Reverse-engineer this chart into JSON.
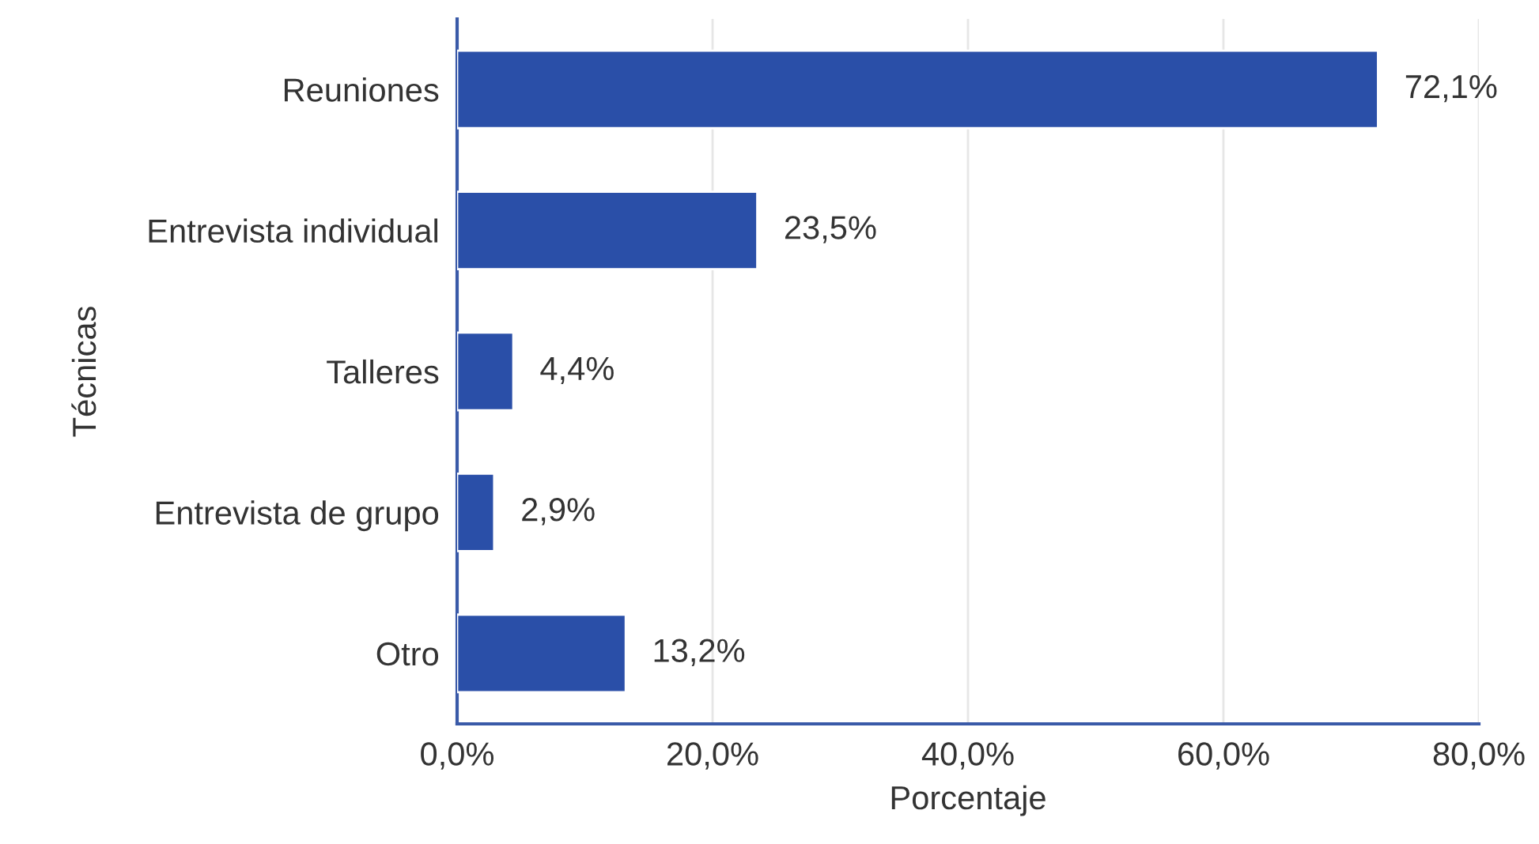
{
  "chart_data": {
    "type": "bar",
    "orientation": "horizontal",
    "categories": [
      "Reuniones",
      "Entrevista individual",
      "Talleres",
      "Entrevista de grupo",
      "Otro"
    ],
    "values": [
      72.1,
      23.5,
      4.4,
      2.9,
      13.2
    ],
    "value_labels": [
      "72,1%",
      "23,5%",
      "4,4%",
      "2,9%",
      "13,2%"
    ],
    "color": "#2a4fa8",
    "xlim": [
      0,
      80
    ],
    "xticks": [
      {
        "value": 0,
        "label": "0,0%"
      },
      {
        "value": 20,
        "label": "20,0%"
      },
      {
        "value": 40,
        "label": "40,0%"
      },
      {
        "value": 60,
        "label": "60,0%"
      },
      {
        "value": 80,
        "label": "80,0%"
      }
    ],
    "xlabel": "Porcentaje",
    "ylabel": "Técnicas",
    "grid": "x",
    "legend": false
  }
}
